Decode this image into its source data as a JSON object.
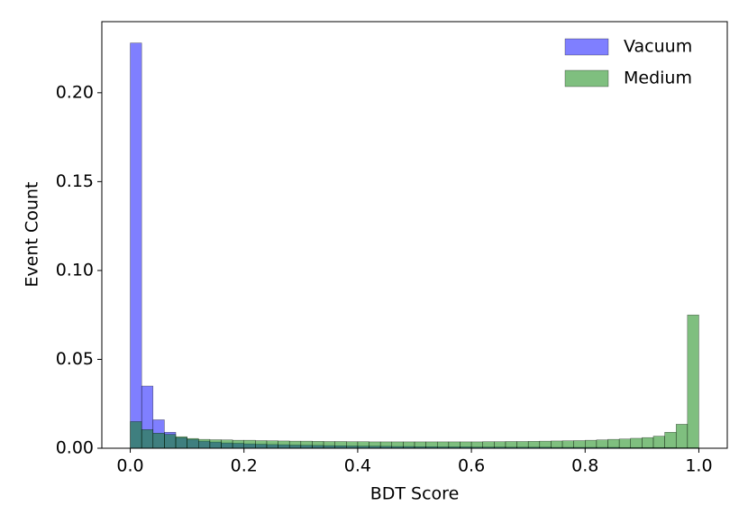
{
  "chart_data": {
    "type": "histogram",
    "xlabel": "BDT Score",
    "ylabel": "Event Count",
    "bins": [
      0,
      0.02,
      0.04,
      0.06,
      0.08,
      0.1,
      0.12,
      0.14,
      0.16,
      0.18,
      0.2,
      0.22,
      0.24,
      0.26,
      0.28,
      0.3,
      0.32,
      0.34,
      0.36,
      0.38,
      0.4,
      0.42,
      0.44,
      0.46,
      0.48,
      0.5,
      0.52,
      0.54,
      0.56,
      0.58,
      0.6,
      0.62,
      0.64,
      0.66,
      0.68,
      0.7,
      0.72,
      0.74,
      0.76,
      0.78,
      0.8,
      0.82,
      0.84,
      0.86,
      0.88,
      0.9,
      0.92,
      0.94,
      0.96,
      0.98,
      1.0
    ],
    "series": [
      {
        "name": "Vacuum",
        "color": "#0000ff",
        "values": [
          0.228,
          0.035,
          0.016,
          0.009,
          0.006,
          0.005,
          0.004,
          0.0035,
          0.003,
          0.0028,
          0.0025,
          0.0023,
          0.0021,
          0.002,
          0.0018,
          0.0017,
          0.0016,
          0.0015,
          0.0014,
          0.0013,
          0.0012,
          0.0012,
          0.0011,
          0.001,
          0.001,
          0.0009,
          0.0009,
          0.0008,
          0.0008,
          0.0008,
          0.0007,
          0.0007,
          0.0007,
          0.0006,
          0.0006,
          0.0006,
          0.0006,
          0.0005,
          0.0005,
          0.0005,
          0.0005,
          0.0005,
          0.0005,
          0.0004,
          0.0004,
          0.0004,
          0.0004,
          0.0004,
          0.0003,
          0.0003
        ]
      },
      {
        "name": "Medium",
        "color": "#008000",
        "values": [
          0.015,
          0.0105,
          0.0085,
          0.0078,
          0.0065,
          0.0055,
          0.005,
          0.0048,
          0.0047,
          0.0045,
          0.0045,
          0.0043,
          0.0042,
          0.0041,
          0.004,
          0.004,
          0.0039,
          0.0038,
          0.0038,
          0.0037,
          0.0037,
          0.0036,
          0.0036,
          0.0036,
          0.0036,
          0.0036,
          0.0036,
          0.0036,
          0.0036,
          0.0036,
          0.0036,
          0.0037,
          0.0037,
          0.0038,
          0.0038,
          0.0039,
          0.004,
          0.0041,
          0.0042,
          0.0043,
          0.0045,
          0.0047,
          0.005,
          0.0052,
          0.0056,
          0.006,
          0.0068,
          0.009,
          0.0135,
          0.075
        ]
      }
    ],
    "xlim": [
      -0.05,
      1.05
    ],
    "ylim": [
      0,
      0.24
    ],
    "xticks": [
      {
        "value": 0,
        "label": "0.0"
      },
      {
        "value": 0.2,
        "label": "0.2"
      },
      {
        "value": 0.4,
        "label": "0.4"
      },
      {
        "value": 0.6,
        "label": "0.6"
      },
      {
        "value": 0.8,
        "label": "0.8"
      },
      {
        "value": 1.0,
        "label": "1.0"
      }
    ],
    "yticks": [
      {
        "value": 0,
        "label": "0.00"
      },
      {
        "value": 0.05,
        "label": "0.05"
      },
      {
        "value": 0.1,
        "label": "0.10"
      },
      {
        "value": 0.15,
        "label": "0.15"
      },
      {
        "value": 0.2,
        "label": "0.20"
      }
    ],
    "alpha": 0.5,
    "legend": "upper right"
  }
}
